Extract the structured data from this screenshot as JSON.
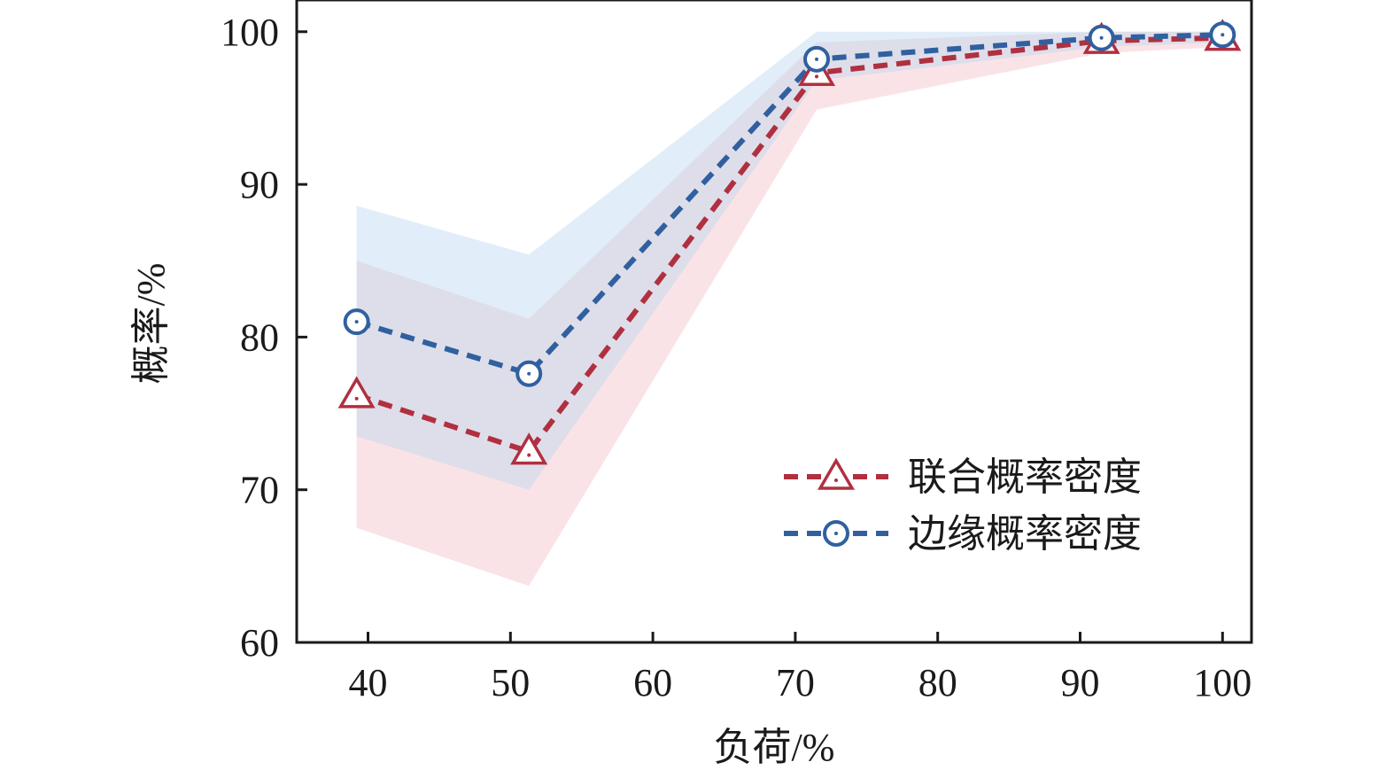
{
  "chart_data": {
    "type": "line",
    "xlabel": "负荷/%",
    "ylabel": "概率/%",
    "xlim": [
      35,
      101
    ],
    "ylim": [
      60,
      102
    ],
    "xticks": [
      40,
      50,
      60,
      70,
      80,
      90,
      100
    ],
    "yticks": [
      60,
      70,
      80,
      90,
      100
    ],
    "grid": false,
    "legend_position": "lower-right",
    "series": [
      {
        "name": "联合概率密度",
        "color": "#b03040",
        "band_color": "#f4c0c8",
        "marker": "triangle",
        "line_style": "dashed",
        "x": [
          39.2,
          51.3,
          71.5,
          91.5,
          100
        ],
        "y": [
          76.2,
          72.5,
          97.3,
          99.4,
          99.6
        ],
        "band_lower": [
          67.5,
          63.7,
          94.9,
          98.6,
          99.0
        ],
        "band_upper": [
          85.0,
          81.2,
          99.3,
          100.0,
          100.0
        ]
      },
      {
        "name": "边缘概率密度",
        "color": "#3060a0",
        "band_color": "#bcd6f0",
        "marker": "circle",
        "line_style": "dashed",
        "x": [
          39.2,
          51.3,
          71.5,
          91.5,
          100
        ],
        "y": [
          81.0,
          77.6,
          98.2,
          99.6,
          99.8
        ],
        "band_lower": [
          73.5,
          70.0,
          96.8,
          99.0,
          99.3
        ],
        "band_upper": [
          88.6,
          85.4,
          100.0,
          100.0,
          100.0
        ]
      }
    ]
  }
}
